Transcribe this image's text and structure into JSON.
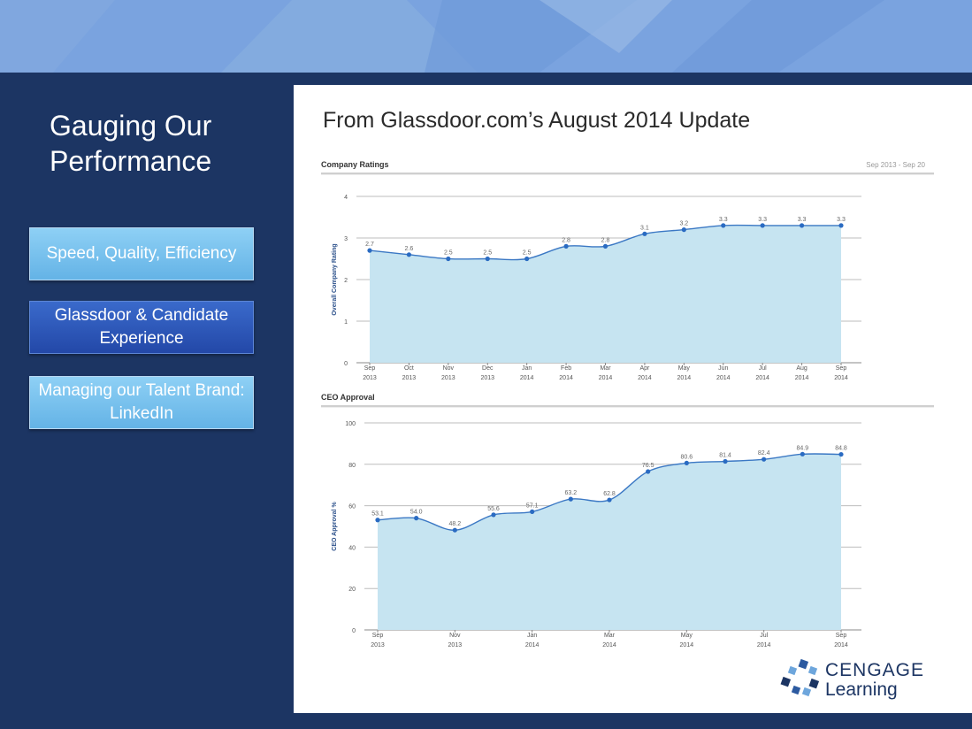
{
  "slide": {
    "title": "Gauging Our Performance",
    "nav": [
      {
        "label": "Speed, Quality, Efficiency"
      },
      {
        "label": "Glassdoor & Candidate Experience"
      },
      {
        "label": "Managing our Talent Brand: LinkedIn"
      }
    ]
  },
  "panel": {
    "title": "From Glassdoor.com’s August 2014 Update",
    "ratings_header": "Company Ratings",
    "ratings_range": "Sep 2013 - Sep 20",
    "ceo_header": "CEO Approval"
  },
  "logo": {
    "top": "CENGAGE",
    "bottom": "Learning"
  },
  "colors": {
    "line": "#3b78c4",
    "area": "#c6e4f1",
    "point": "#2a6bc2",
    "accent": "#1c3563"
  },
  "chart_data": [
    {
      "type": "area",
      "title": "Company Ratings",
      "ylabel": "Overall Company Rating",
      "ylim": [
        0,
        4
      ],
      "yticks": [
        "0",
        "1",
        "2",
        "3",
        "4"
      ],
      "x_labels": [
        [
          "Sep",
          "2013"
        ],
        [
          "Oct",
          "2013"
        ],
        [
          "Nov",
          "2013"
        ],
        [
          "Dec",
          "2013"
        ],
        [
          "Jan",
          "2014"
        ],
        [
          "Feb",
          "2014"
        ],
        [
          "Mar",
          "2014"
        ],
        [
          "Apr",
          "2014"
        ],
        [
          "May",
          "2014"
        ],
        [
          "Jun",
          "2014"
        ],
        [
          "Jul",
          "2014"
        ],
        [
          "Aug",
          "2014"
        ],
        [
          "Sep",
          "2014"
        ]
      ],
      "x": [
        0,
        1,
        2,
        3,
        4,
        5,
        6,
        7,
        8,
        9,
        10,
        11,
        12
      ],
      "values": [
        2.7,
        2.6,
        2.5,
        2.5,
        2.5,
        2.8,
        2.8,
        3.1,
        3.2,
        3.3,
        3.3,
        3.3,
        3.3
      ],
      "value_labels": [
        "2.7",
        "2.6",
        "2.5",
        "2.5",
        "2.5",
        "2.8",
        "2.8",
        "3.1",
        "3.2",
        "3.3",
        "3.3",
        "3.3",
        "3.3"
      ]
    },
    {
      "type": "area",
      "title": "CEO Approval",
      "ylabel": "CEO Approval %",
      "ylim": [
        0,
        100
      ],
      "yticks": [
        "0",
        "20",
        "40",
        "60",
        "80",
        "100"
      ],
      "x_labels": [
        [
          "Sep",
          "2013"
        ],
        [
          "Nov",
          "2013"
        ],
        [
          "Jan",
          "2014"
        ],
        [
          "Mar",
          "2014"
        ],
        [
          "May",
          "2014"
        ],
        [
          "Jul",
          "2014"
        ],
        [
          "Sep",
          "2014"
        ]
      ],
      "x_label_positions": [
        0,
        2,
        4,
        6,
        8,
        10,
        12
      ],
      "x": [
        0,
        1,
        2,
        3,
        4,
        5,
        6,
        7,
        8,
        9,
        10,
        11,
        12
      ],
      "values": [
        53.1,
        54.0,
        48.2,
        55.6,
        57.1,
        63.2,
        62.8,
        76.5,
        80.6,
        81.4,
        82.4,
        84.9,
        84.8
      ],
      "value_labels": [
        "53.1",
        "54.0",
        "48.2",
        "55.6",
        "57.1",
        "63.2",
        "62.8",
        "76.5",
        "80.6",
        "81.4",
        "82.4",
        "84.9",
        "84.8"
      ]
    }
  ]
}
